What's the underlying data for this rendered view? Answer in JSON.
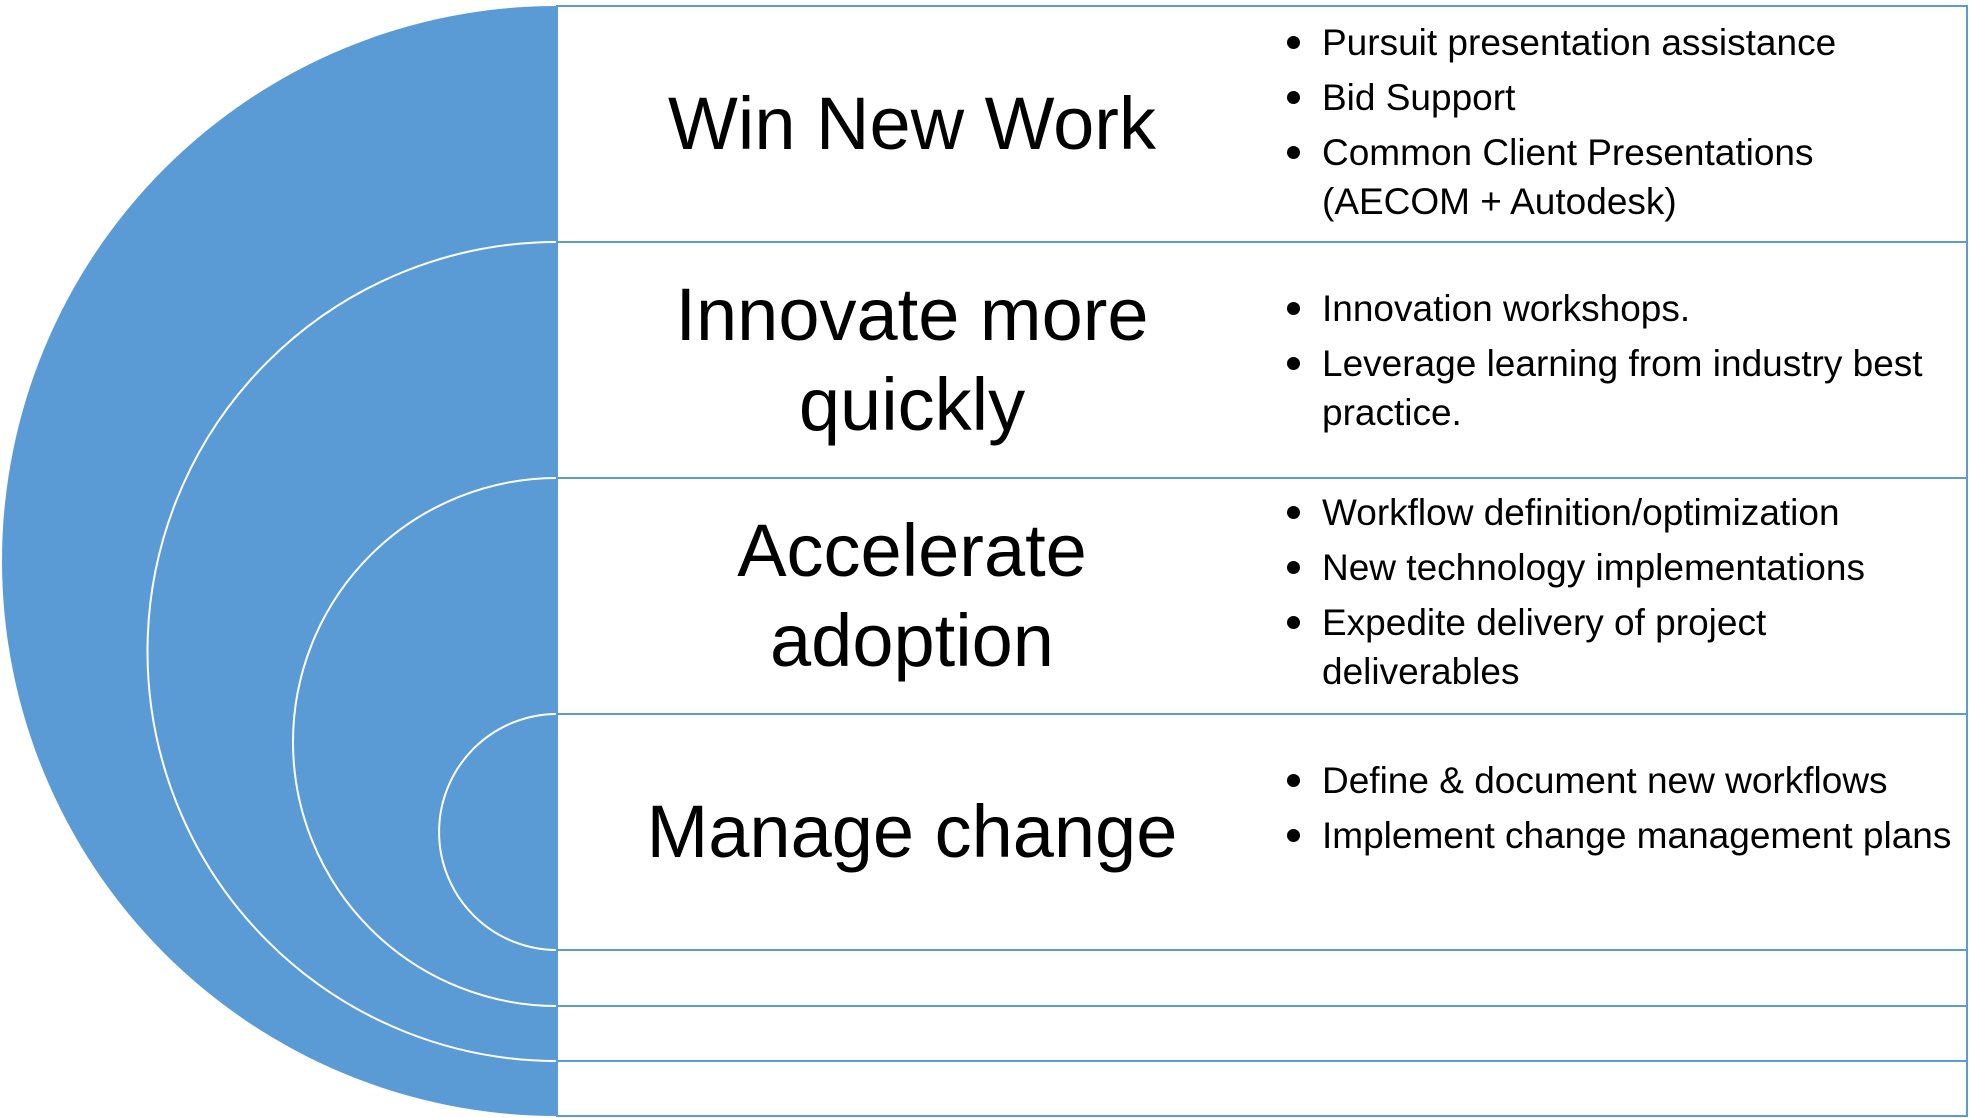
{
  "colors": {
    "arc_fill": "#5b9bd5",
    "outline": "#5b9bd5",
    "arc_inner_line": "#ffffff",
    "text": "#000000",
    "band_fill": "#ffffff"
  },
  "levels": [
    {
      "title": "Win New Work",
      "bullets": [
        "Pursuit presentation assistance",
        "Bid Support",
        "Common Client Presentations (AECOM + Autodesk)"
      ]
    },
    {
      "title": "Innovate more quickly",
      "bullets": [
        "Innovation workshops.",
        "Leverage learning from industry best practice."
      ]
    },
    {
      "title": "Accelerate adoption",
      "bullets": [
        "Workflow definition/optimization",
        "New technology implementations",
        "Expedite delivery of project deliverables"
      ]
    },
    {
      "title": "Manage change",
      "bullets": [
        "Define & document new workflows",
        "Implement change management plans"
      ]
    }
  ]
}
